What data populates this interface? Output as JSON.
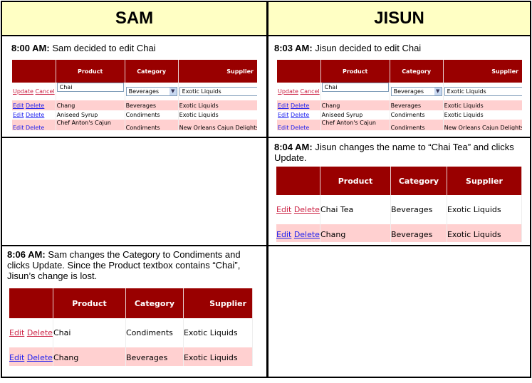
{
  "columns": {
    "sam": "SAM",
    "jisun": "JISUN"
  },
  "table_headers": [
    "Product",
    "Category",
    "Supplier"
  ],
  "links": {
    "edit": "Edit",
    "delete": "Delete",
    "update": "Update",
    "cancel": "Cancel"
  },
  "panel_sam_800": {
    "time": "8:00 AM:",
    "text": " Sam decided to edit Chai",
    "edit_row": {
      "product": "Chai",
      "category": "Beverages",
      "supplier": "Exotic Liquids"
    },
    "rows": [
      {
        "product": "Chang",
        "category": "Beverages",
        "supplier": "Exotic Liquids"
      },
      {
        "product": "Aniseed Syrup",
        "category": "Condiments",
        "supplier": "Exotic Liquids"
      },
      {
        "product": "Chef Anton's Cajun",
        "category": "Condiments",
        "supplier": "New Orleans Cajun Delights"
      }
    ]
  },
  "panel_jisun_803": {
    "time": "8:03 AM:",
    "text": " Jisun decided to edit Chai",
    "edit_row": {
      "product": "Chai",
      "category": "Beverages",
      "supplier": "Exotic Liquids"
    },
    "rows": [
      {
        "product": "Chang",
        "category": "Beverages",
        "supplier": "Exotic Liquids"
      },
      {
        "product": "Aniseed Syrup",
        "category": "Condiments",
        "supplier": "Exotic Liquids"
      },
      {
        "product": "Chef Anton's Cajun",
        "category": "Condiments",
        "supplier": "New Orleans Cajun Delights"
      }
    ]
  },
  "panel_jisun_804": {
    "time": "8:04 AM:",
    "text": " Jisun changes the name to “Chai Tea” and clicks Update.",
    "rows": [
      {
        "product": "Chai Tea",
        "category": "Beverages",
        "supplier": "Exotic Liquids"
      },
      {
        "product": "Chang",
        "category": "Beverages",
        "supplier": "Exotic Liquids"
      }
    ]
  },
  "panel_sam_806": {
    "time": "8:06 AM:",
    "text": " Sam changes the Category to Condiments and clicks Update. Since the Product textbox contains “Chai”, Jisun’s change is lost.",
    "rows": [
      {
        "product": "Chai",
        "category": "Condiments",
        "supplier": "Exotic Liquids"
      },
      {
        "product": "Chang",
        "category": "Beverages",
        "supplier": "Exotic Liquids"
      }
    ]
  }
}
